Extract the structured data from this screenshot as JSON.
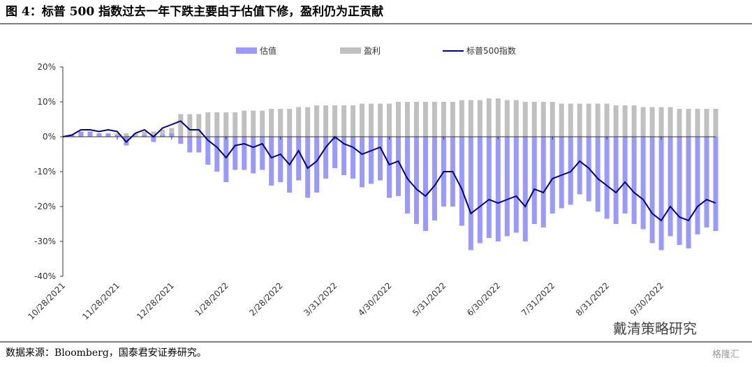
{
  "chart_data": {
    "type": "bar_line",
    "title": "图 4：标普 500 指数过去一年下跌主要由于估值下修，盈利仍为正贡献",
    "source": "数据来源：Bloomberg，国泰君安证券研究。",
    "watermark": "戴清策略研究",
    "corner_mark": "格隆汇",
    "categories": [
      "10/28/2021",
      null,
      null,
      null,
      null,
      null,
      "11/28/2021",
      null,
      null,
      null,
      null,
      null,
      "12/28/2021",
      null,
      null,
      null,
      null,
      null,
      "1/28/2022",
      null,
      null,
      null,
      null,
      null,
      "2/28/2022",
      null,
      null,
      null,
      null,
      null,
      "3/31/2022",
      null,
      null,
      null,
      null,
      null,
      "4/30/2022",
      null,
      null,
      null,
      null,
      null,
      "5/31/2022",
      null,
      null,
      null,
      null,
      null,
      "6/30/2022",
      null,
      null,
      null,
      null,
      null,
      "7/31/2022",
      null,
      null,
      null,
      null,
      null,
      "8/31/2022",
      null,
      null,
      null,
      null,
      null,
      "9/30/2022",
      null,
      null,
      null,
      null,
      null,
      null
    ],
    "series": [
      {
        "name": "估值",
        "kind": "bar",
        "color": "#9999ff",
        "values": [
          0,
          0.5,
          1.5,
          1.5,
          1,
          1,
          0.5,
          -2.5,
          0,
          0.5,
          -1.5,
          0.5,
          1,
          -2,
          -4.5,
          -4.5,
          -8,
          -10,
          -13,
          -9.5,
          -9.5,
          -10.5,
          -9.5,
          -14,
          -13,
          -16,
          -12.5,
          -17.5,
          -16,
          -12,
          -9,
          -11,
          -12,
          -14.5,
          -13.5,
          -12.5,
          -17.5,
          -17,
          -22,
          -25,
          -27,
          -24,
          -20,
          -20,
          -25.5,
          -32.5,
          -30.5,
          -29,
          -30,
          -28.5,
          -27.5,
          -30,
          -25,
          -26,
          -22,
          -20.5,
          -19.5,
          -16.5,
          -18.5,
          -21.5,
          -23.5,
          -25,
          -22,
          -25,
          -26.5,
          -30.5,
          -32.5,
          -28.5,
          -31,
          -32,
          -28,
          -26,
          -27
        ]
      },
      {
        "name": "盈利",
        "kind": "bar",
        "color": "#c0c0c0",
        "values": [
          0,
          0,
          0.5,
          0.5,
          0.5,
          1,
          1,
          1,
          1,
          1.5,
          1.5,
          2,
          2.5,
          6.5,
          6.5,
          6.5,
          7,
          7,
          7,
          7,
          7.5,
          7.5,
          7.5,
          8,
          8,
          8,
          8.5,
          8.5,
          9,
          9,
          9,
          9,
          9,
          9.5,
          9.5,
          9.5,
          9.5,
          10,
          10,
          10,
          10,
          10,
          10,
          10,
          10.5,
          10.5,
          10.5,
          11,
          11,
          10.5,
          10.5,
          10,
          10,
          10,
          10,
          9.5,
          9.5,
          9.5,
          9.5,
          9.5,
          9.5,
          9,
          9,
          9,
          8.5,
          8.5,
          8.5,
          8.5,
          8,
          8,
          8,
          8,
          8
        ]
      },
      {
        "name": "标普500指数",
        "kind": "line",
        "color": "#000080",
        "values": [
          0,
          0.5,
          2,
          2,
          1.5,
          2,
          1.5,
          -1.5,
          1,
          2,
          0,
          2.5,
          3.5,
          4.5,
          2,
          2,
          -1,
          -3,
          -6,
          -2.5,
          -2,
          -3,
          -2,
          -6,
          -5,
          -8,
          -4,
          -9,
          -7,
          -3,
          0,
          -2,
          -3,
          -5,
          -4,
          -3,
          -8,
          -7,
          -12,
          -15,
          -17,
          -14,
          -10,
          -10,
          -15,
          -22,
          -20,
          -18,
          -19,
          -18,
          -17,
          -20,
          -15,
          -16,
          -12,
          -11,
          -10,
          -7,
          -9,
          -12,
          -14,
          -16,
          -13,
          -16,
          -18,
          -22,
          -24,
          -20,
          -23,
          -24,
          -20,
          -18,
          -19
        ]
      }
    ],
    "ylim": [
      -40,
      20
    ],
    "yticks": [
      {
        "value": 20,
        "label": "20%"
      },
      {
        "value": 10,
        "label": "10%"
      },
      {
        "value": 0,
        "label": "0%"
      },
      {
        "value": -10,
        "label": "-10%"
      },
      {
        "value": -20,
        "label": "-20%"
      },
      {
        "value": -30,
        "label": "-30%"
      },
      {
        "value": -40,
        "label": "-40%"
      }
    ],
    "legend": "top"
  }
}
